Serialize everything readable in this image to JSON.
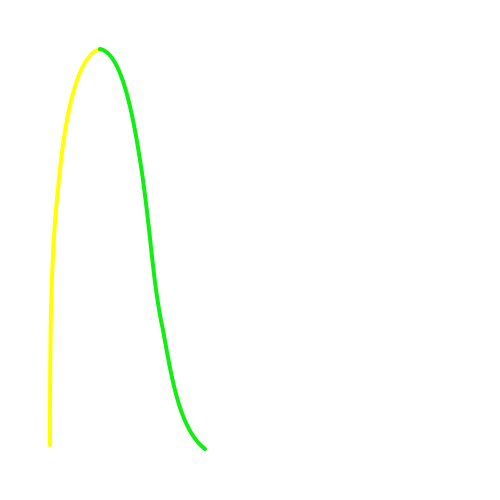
{
  "colors": {
    "background": "#ffffff",
    "curve_left": "#ffff00",
    "curve_right": "#11ee11"
  },
  "shapes": [
    {
      "name": "yellow-curve",
      "color_key": "curve_left"
    },
    {
      "name": "green-curve",
      "color_key": "curve_right"
    }
  ]
}
